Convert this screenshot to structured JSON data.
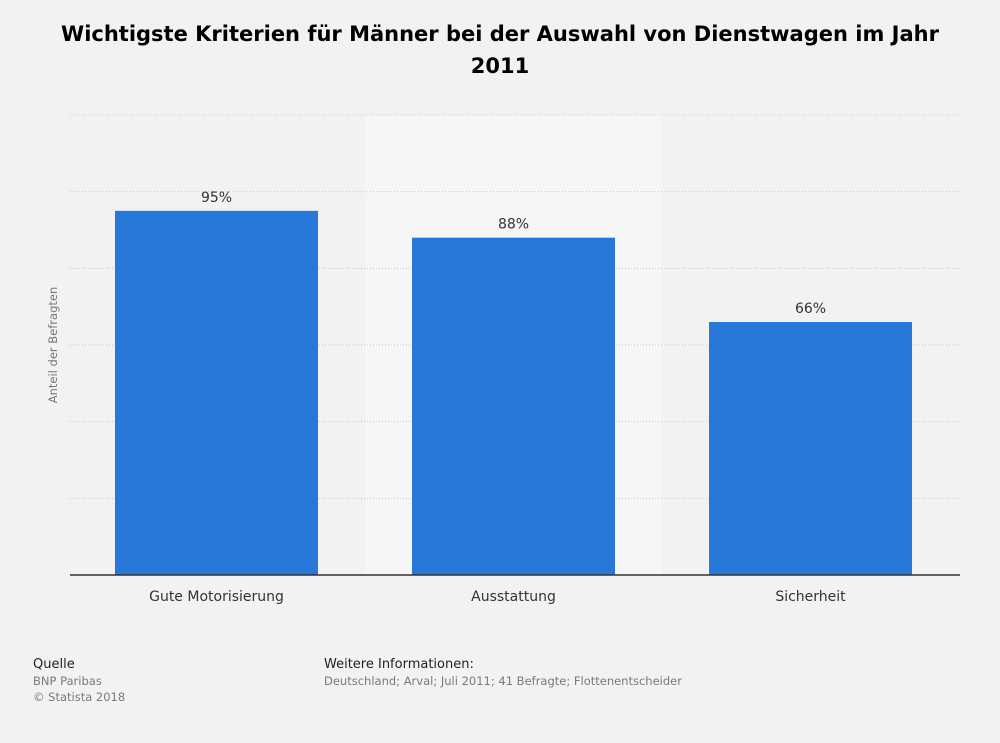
{
  "chart_data": {
    "type": "bar",
    "title": "Wichtigste Kriterien für Männer bei der Auswahl von Dienstwagen im Jahr 2011",
    "categories": [
      "Gute Motorisierung",
      "Ausstattung",
      "Sicherheit"
    ],
    "values": [
      95,
      88,
      66
    ],
    "value_labels": [
      "95%",
      "88%",
      "66%"
    ],
    "xlabel": "",
    "ylabel": "Anteil der Befragten",
    "ylim": [
      0,
      120
    ],
    "grid": true,
    "bar_color": "#2878d9"
  },
  "footer": {
    "source_heading": "Quelle",
    "source_text": "BNP Paribas",
    "copyright": "© Statista 2018",
    "info_heading": "Weitere Informationen:",
    "info_text": "Deutschland; Arval; Juli 2011; 41 Befragte; Flottenentscheider"
  }
}
